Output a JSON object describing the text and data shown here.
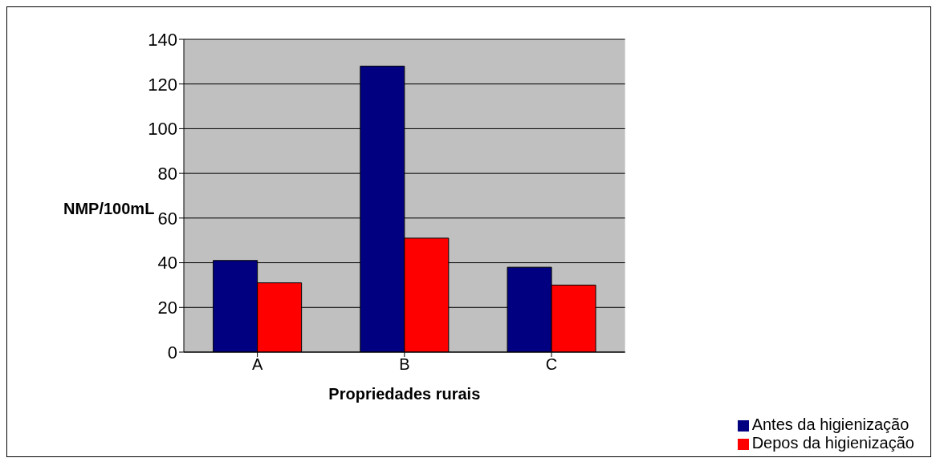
{
  "chart_data": {
    "type": "bar",
    "xlabel": "Propriedades rurais",
    "ylabel": "NMP/100mL",
    "categories": [
      "A",
      "B",
      "C"
    ],
    "series": [
      {
        "name": "Antes da higienização",
        "color": "#000080",
        "values": [
          41,
          128,
          38
        ]
      },
      {
        "name": "Depos da higienização",
        "color": "#ff0000",
        "values": [
          31,
          51,
          30
        ]
      }
    ],
    "ylim": [
      0,
      140
    ],
    "yticks": [
      0,
      20,
      40,
      60,
      80,
      100,
      120,
      140
    ],
    "grid": "y",
    "legend": "bottom right"
  }
}
